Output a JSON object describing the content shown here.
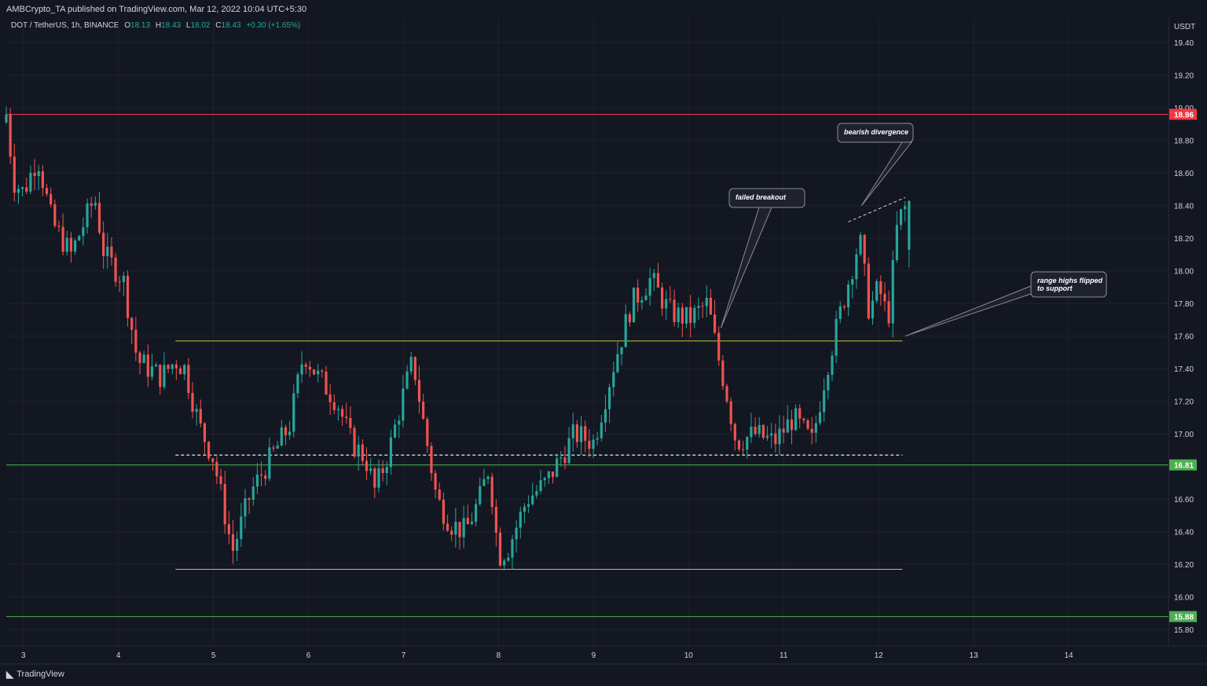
{
  "header": {
    "publisher_line": "AMBCrypto_TA published on TradingView.com, Mar 12, 2022 10:04 UTC+5:30"
  },
  "symbol": {
    "name": "DOT / TetherUS, 1h, BINANCE",
    "open_label": "O",
    "open": "18.13",
    "high_label": "H",
    "high": "18.43",
    "low_label": "L",
    "low": "18.02",
    "close_label": "C",
    "close": "18.43",
    "change": "+0.30 (+1.65%)"
  },
  "footer": {
    "brand": "TradingView"
  },
  "colors": {
    "background": "#131722",
    "up": "#26a69a",
    "down": "#ef5350",
    "resistance": "#f23645",
    "support": "#4caf50",
    "range": "#c9c33a",
    "text": "#d1d4dc"
  },
  "chart_data": {
    "type": "candlestick",
    "currency": "USDT",
    "y_ticks": [
      "19.40",
      "19.20",
      "19.00",
      "18.80",
      "18.60",
      "18.40",
      "18.20",
      "18.00",
      "17.80",
      "17.60",
      "17.40",
      "17.20",
      "17.00",
      "16.80",
      "16.60",
      "16.40",
      "16.20",
      "16.00",
      "15.80"
    ],
    "y_tick_values": [
      19.4,
      19.2,
      19.0,
      18.8,
      18.6,
      18.4,
      18.2,
      18.0,
      17.8,
      17.6,
      17.4,
      17.2,
      17.0,
      16.8,
      16.6,
      16.4,
      16.2,
      16.0,
      15.8
    ],
    "ylim": [
      15.7,
      19.55
    ],
    "x_ticks": [
      "3",
      "4",
      "5",
      "6",
      "7",
      "8",
      "9",
      "10",
      "11",
      "12",
      "13",
      "14"
    ],
    "x_tick_values": [
      3,
      4,
      5,
      6,
      7,
      8,
      9,
      10,
      11,
      12,
      13,
      14
    ],
    "xlim": [
      2.82,
      15.05
    ],
    "anchors": [
      [
        2.82,
        18.96
      ],
      [
        2.9,
        18.55
      ],
      [
        3.0,
        18.48
      ],
      [
        3.15,
        18.7
      ],
      [
        3.3,
        18.3
      ],
      [
        3.5,
        18.1
      ],
      [
        3.75,
        18.45
      ],
      [
        3.85,
        18.1
      ],
      [
        4.05,
        17.95
      ],
      [
        4.2,
        17.45
      ],
      [
        4.45,
        17.35
      ],
      [
        4.6,
        17.45
      ],
      [
        4.7,
        17.4
      ],
      [
        4.85,
        17.05
      ],
      [
        5.0,
        16.85
      ],
      [
        5.2,
        16.28
      ],
      [
        5.4,
        16.65
      ],
      [
        5.6,
        16.85
      ],
      [
        5.8,
        17.05
      ],
      [
        5.95,
        17.5
      ],
      [
        6.1,
        17.35
      ],
      [
        6.3,
        17.2
      ],
      [
        6.45,
        16.95
      ],
      [
        6.6,
        16.85
      ],
      [
        6.7,
        16.65
      ],
      [
        6.85,
        16.9
      ],
      [
        7.0,
        17.25
      ],
      [
        7.1,
        17.45
      ],
      [
        7.2,
        17.1
      ],
      [
        7.35,
        16.6
      ],
      [
        7.5,
        16.45
      ],
      [
        7.65,
        16.4
      ],
      [
        7.8,
        16.6
      ],
      [
        7.9,
        16.8
      ],
      [
        8.0,
        16.25
      ],
      [
        8.1,
        16.3
      ],
      [
        8.3,
        16.6
      ],
      [
        8.5,
        16.7
      ],
      [
        8.65,
        16.85
      ],
      [
        8.8,
        17.0
      ],
      [
        9.0,
        16.95
      ],
      [
        9.2,
        17.4
      ],
      [
        9.4,
        17.8
      ],
      [
        9.6,
        17.95
      ],
      [
        9.8,
        17.75
      ],
      [
        10.0,
        17.7
      ],
      [
        10.2,
        17.8
      ],
      [
        10.3,
        17.5
      ],
      [
        10.4,
        17.25
      ],
      [
        10.5,
        16.95
      ],
      [
        10.7,
        17.0
      ],
      [
        10.9,
        16.95
      ],
      [
        11.1,
        17.1
      ],
      [
        11.3,
        16.95
      ],
      [
        11.45,
        17.4
      ],
      [
        11.6,
        17.75
      ],
      [
        11.8,
        18.2
      ],
      [
        11.9,
        17.75
      ],
      [
        12.0,
        17.9
      ],
      [
        12.1,
        17.7
      ],
      [
        12.2,
        18.3
      ],
      [
        12.32,
        18.43
      ]
    ],
    "candle_count": 224,
    "last_candle": {
      "open": 18.13,
      "high": 18.43,
      "low": 18.02,
      "close": 18.43
    },
    "horizontal_levels": [
      {
        "price": 18.96,
        "label": "18.96",
        "color": "#f23645",
        "type": "resistance"
      },
      {
        "price": 16.81,
        "label": "16.81",
        "color": "#4caf50",
        "type": "support"
      },
      {
        "price": 15.88,
        "label": "15.88",
        "color": "#4caf50",
        "type": "support"
      }
    ],
    "range_box": {
      "high": 17.57,
      "low": 16.17,
      "mid": 16.87,
      "x_start": 4.6,
      "x_end": 12.25,
      "color": "#c9c33a"
    },
    "divergence_line": {
      "x1": 11.68,
      "y1": 18.3,
      "x2": 12.28,
      "y2": 18.45
    },
    "annotations": [
      {
        "text": "bearish divergence",
        "anchor_x": 11.82,
        "anchor_y": 18.4
      },
      {
        "text": "failed breakout",
        "anchor_x": 10.34,
        "anchor_y": 17.65
      },
      {
        "text": "range highs flipped to support",
        "anchor_x": 12.28,
        "anchor_y": 17.6
      }
    ]
  }
}
